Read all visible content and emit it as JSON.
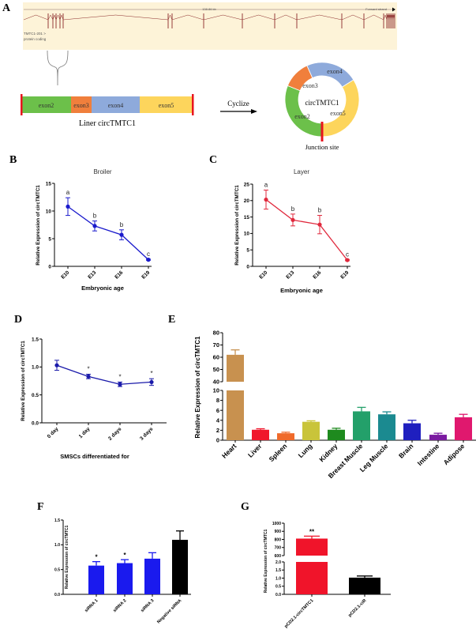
{
  "panel_labels": [
    "A",
    "B",
    "C",
    "D",
    "E",
    "F",
    "G"
  ],
  "diagram_a": {
    "track_scale": "138.86 kb",
    "track_strand": "Forward strand",
    "transcript_name": "TMTC1-201 >",
    "transcript_type": "protein coding",
    "linear_exons": [
      {
        "label": "exon2",
        "color": "#6cc04a"
      },
      {
        "label": "exon3",
        "color": "#f07f3c"
      },
      {
        "label": "exon4",
        "color": "#8eaadb"
      },
      {
        "label": "exon5",
        "color": "#fdd55c"
      }
    ],
    "linear_caption": "Liner circTMTC1",
    "arrow_label": "Cyclize",
    "circle_center_label": "circTMTC1",
    "junction_label": "Junction site",
    "junction_color": "#e8141e",
    "track_bg": "#fdf3d8",
    "track_color": "#8b2a2a"
  },
  "chart_data": [
    {
      "id": "B",
      "type": "line",
      "title": "Broiler",
      "xlabel": "Embryonic age",
      "ylabel": "Relative Expression of circTMTC1",
      "categories": [
        "E10",
        "E13",
        "E16",
        "E19"
      ],
      "values": [
        10.8,
        7.3,
        5.7,
        1.2
      ],
      "errors": [
        1.6,
        0.9,
        0.9,
        0.1
      ],
      "annotations": [
        "a",
        "b",
        "b",
        "c"
      ],
      "yticks": [
        0,
        5,
        10,
        15
      ],
      "ylim": [
        0,
        15
      ],
      "color": "#1a1acc"
    },
    {
      "id": "C",
      "type": "line",
      "title": "Layer",
      "xlabel": "Embryonic age",
      "ylabel": "Relative Expression of circTMTC1",
      "categories": [
        "E10",
        "E13",
        "E16",
        "E19"
      ],
      "values": [
        20.3,
        14.1,
        12.7,
        1.9
      ],
      "errors": [
        2.9,
        1.8,
        2.8,
        0.2
      ],
      "annotations": [
        "a",
        "b",
        "b",
        "c"
      ],
      "yticks": [
        0,
        5,
        10,
        15,
        20,
        25
      ],
      "ylim": [
        0,
        25
      ],
      "color": "#e0283c"
    },
    {
      "id": "D",
      "type": "line",
      "title": "",
      "xlabel": "SMSCs differentiated for",
      "ylabel": "Relative Expression of circTMTC1",
      "categories": [
        "0 day",
        "1 day",
        "2 days",
        "3 days"
      ],
      "values": [
        1.03,
        0.83,
        0.69,
        0.73
      ],
      "errors": [
        0.09,
        0.04,
        0.04,
        0.06
      ],
      "annotations": [
        "",
        "*",
        "*",
        "*"
      ],
      "yticks": [
        0.0,
        0.5,
        1.0,
        1.5
      ],
      "ytick_labels": [
        "0.0",
        "0.5",
        "1.0",
        "1.5"
      ],
      "ylim": [
        0,
        1.5
      ],
      "color": "#1a1aaa"
    },
    {
      "id": "E",
      "type": "bar",
      "title": "",
      "xlabel": "",
      "ylabel": "Relative Expression of circTMTC1",
      "categories": [
        "Heart",
        "Liver",
        "Spleen",
        "Lung",
        "Kidney",
        "Breast Muscle",
        "Leg Muscle",
        "Brain",
        "Intestine",
        "Adipose"
      ],
      "values": [
        62,
        2.1,
        1.4,
        3.7,
        2.1,
        5.8,
        5.2,
        3.4,
        1.1,
        4.6
      ],
      "errors": [
        4,
        0.2,
        0.2,
        0.2,
        0.3,
        0.8,
        0.5,
        0.6,
        0.3,
        0.6
      ],
      "colors": [
        "#c8914f",
        "#f0162b",
        "#f06a2a",
        "#c9c43a",
        "#1e8a1e",
        "#23a06a",
        "#1b8a90",
        "#1f1fbf",
        "#7a1aa0",
        "#e0186e"
      ],
      "axis_break": [
        10,
        40
      ],
      "yticks": [
        0,
        2,
        4,
        6,
        8,
        10,
        40,
        50,
        60,
        70,
        80
      ],
      "ylim": [
        0,
        80
      ]
    },
    {
      "id": "F",
      "type": "bar",
      "title": "",
      "xlabel": "",
      "ylabel": "Relative Expression of circTMTC1",
      "categories": [
        "siRNA 1",
        "siRNA 2",
        "siRNA 3",
        "Negative siRNA"
      ],
      "values": [
        0.58,
        0.63,
        0.72,
        1.1
      ],
      "errors": [
        0.08,
        0.07,
        0.12,
        0.18
      ],
      "annotations": [
        "*",
        "*",
        "",
        ""
      ],
      "colors": [
        "#1a1aee",
        "#1a1aee",
        "#1a1aee",
        "#000000"
      ],
      "yticks": [
        0.0,
        0.5,
        1.0,
        1.5
      ],
      "ytick_labels": [
        "0.0",
        "0.5",
        "1.0",
        "1.5"
      ],
      "ylim": [
        0,
        1.5
      ]
    },
    {
      "id": "G",
      "type": "bar",
      "title": "",
      "xlabel": "",
      "ylabel": "Relative Expression of circTMTC1",
      "categories": [
        "pCD2.1-circTMTC1",
        "pCD2.1-ciR"
      ],
      "values": [
        810,
        1.03
      ],
      "errors": [
        30,
        0.1
      ],
      "annotations": [
        "**",
        ""
      ],
      "colors": [
        "#f0142a",
        "#000000"
      ],
      "axis_break": [
        2,
        600
      ],
      "yticks": [
        0.0,
        0.5,
        1.0,
        1.5,
        2.0,
        600,
        700,
        800,
        900,
        1000
      ],
      "ytick_labels": [
        "0.0",
        "0.5",
        "1.0",
        "1.5",
        "2.0",
        "600",
        "700",
        "800",
        "900",
        "1000"
      ],
      "ylim": [
        0,
        1000
      ]
    }
  ]
}
